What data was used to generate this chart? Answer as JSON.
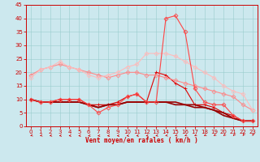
{
  "x": [
    0,
    1,
    2,
    3,
    4,
    5,
    6,
    7,
    8,
    9,
    10,
    11,
    12,
    13,
    14,
    15,
    16,
    17,
    18,
    19,
    20,
    21,
    22,
    23
  ],
  "series": [
    {
      "color": "#dd0000",
      "linewidth": 0.8,
      "marker": "+",
      "markersize": 3,
      "y": [
        10,
        9,
        9,
        10,
        10,
        10,
        8,
        8,
        8,
        9,
        11,
        12,
        9,
        20,
        19,
        16,
        14,
        8,
        8,
        7,
        5,
        4,
        2,
        2
      ]
    },
    {
      "color": "#990000",
      "linewidth": 1.2,
      "marker": null,
      "markersize": 0,
      "y": [
        10,
        9,
        9,
        9,
        9,
        9,
        8,
        7,
        8,
        8,
        9,
        9,
        9,
        9,
        9,
        9,
        8,
        8,
        7,
        6,
        5,
        3,
        2,
        2
      ]
    },
    {
      "color": "#990000",
      "linewidth": 1.2,
      "marker": null,
      "markersize": 0,
      "y": [
        10,
        9,
        9,
        9,
        9,
        9,
        8,
        7,
        8,
        8,
        9,
        9,
        9,
        9,
        9,
        8,
        8,
        7,
        7,
        6,
        4,
        3,
        2,
        2
      ]
    },
    {
      "color": "#ff8888",
      "linewidth": 0.8,
      "marker": "D",
      "markersize": 2.5,
      "y": [
        19,
        21,
        22,
        23,
        22,
        21,
        20,
        19,
        18,
        19,
        20,
        20,
        19,
        19,
        18,
        17,
        16,
        15,
        14,
        13,
        12,
        11,
        8,
        6
      ]
    },
    {
      "color": "#ffbbbb",
      "linewidth": 0.8,
      "marker": "D",
      "markersize": 2.5,
      "y": [
        18,
        21,
        22,
        24,
        22,
        21,
        19,
        18,
        19,
        20,
        22,
        23,
        27,
        27,
        27,
        26,
        24,
        22,
        20,
        18,
        15,
        13,
        12,
        6
      ]
    },
    {
      "color": "#ff4444",
      "linewidth": 0.8,
      "marker": "D",
      "markersize": 2.5,
      "y": [
        10,
        9,
        9,
        10,
        10,
        10,
        8,
        5,
        7,
        8,
        11,
        12,
        9,
        9,
        40,
        41,
        35,
        14,
        9,
        8,
        8,
        4,
        2,
        2
      ]
    }
  ],
  "xlim": [
    -0.5,
    23.5
  ],
  "ylim": [
    0,
    45
  ],
  "yticks": [
    0,
    5,
    10,
    15,
    20,
    25,
    30,
    35,
    40,
    45
  ],
  "xticks": [
    0,
    1,
    2,
    3,
    4,
    5,
    6,
    7,
    8,
    9,
    10,
    11,
    12,
    13,
    14,
    15,
    16,
    17,
    18,
    19,
    20,
    21,
    22,
    23
  ],
  "xlabel": "Vent moyen/en rafales ( km/h )",
  "bg_color": "#cce8ee",
  "grid_color": "#99cccc",
  "axis_color": "#cc0000",
  "label_color": "#cc0000",
  "tick_color": "#cc0000",
  "arrow_angles_deg": [
    220,
    215,
    210,
    205,
    200,
    195,
    195,
    190,
    185,
    188,
    192,
    195,
    200,
    208,
    215,
    220,
    225,
    232,
    240,
    245,
    248,
    252,
    258,
    262
  ]
}
